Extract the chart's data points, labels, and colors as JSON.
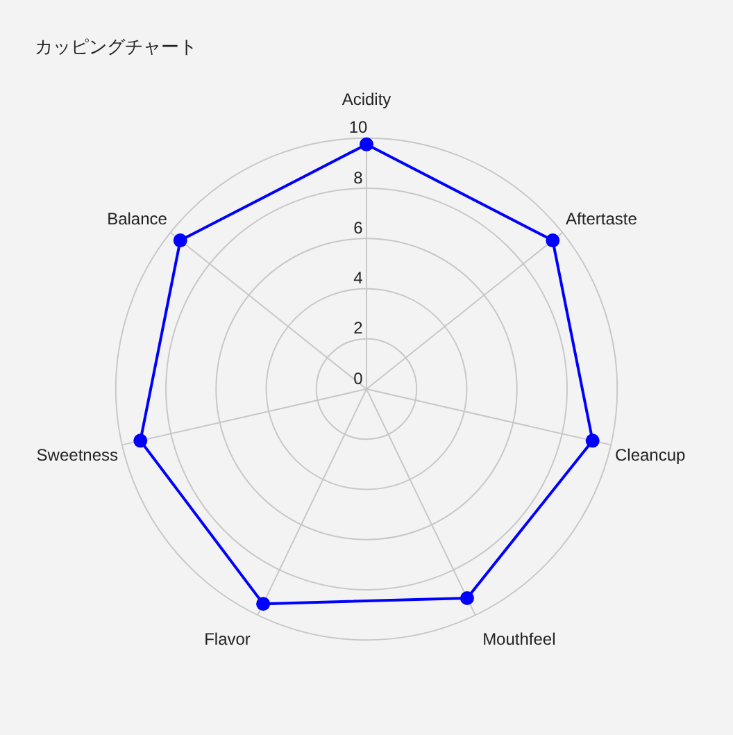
{
  "chart_data": {
    "type": "radar",
    "title": "カッピングチャート",
    "categories": [
      "Acidity",
      "Aftertaste",
      "Cleancup",
      "Mouthfeel",
      "Flavor",
      "Sweetness",
      "Balance"
    ],
    "series": [
      {
        "color": "#0000ff",
        "values": [
          9.75,
          9.5,
          9.25,
          9.25,
          9.5,
          9.25,
          9.5
        ]
      }
    ],
    "ylim": [
      0,
      10
    ],
    "yticks": [
      0,
      2,
      4,
      6,
      8,
      10
    ],
    "grid": true,
    "marker": "circle",
    "line_style": "solid"
  }
}
